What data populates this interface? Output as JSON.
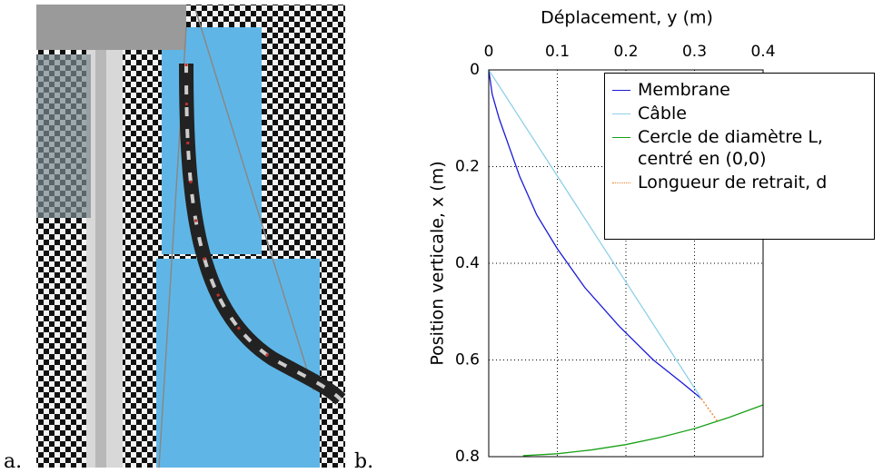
{
  "panel_labels": {
    "a": "a.",
    "b": "b."
  },
  "chart_data": {
    "type": "line",
    "xlabel": "Déplacement, y (m)",
    "ylabel": "Position verticale, x (m)",
    "xlim": [
      0,
      0.4
    ],
    "xticks": [
      0,
      0.1,
      0.2,
      0.3,
      0.4
    ],
    "ylim": [
      0,
      0.8
    ],
    "yticks": [
      0,
      0.2,
      0.4,
      0.6,
      0.8
    ],
    "y_inverted": true,
    "x_axis_position": "top",
    "grid": true,
    "legend": "upper right",
    "series": [
      {
        "name": "Membrane",
        "color": "#1a1ad8",
        "style": "solid",
        "x": [
          0,
          0.005,
          0.015,
          0.03,
          0.045,
          0.07,
          0.1,
          0.14,
          0.19,
          0.24,
          0.28,
          0.31
        ],
        "values": [
          0,
          0.05,
          0.1,
          0.16,
          0.22,
          0.3,
          0.37,
          0.45,
          0.53,
          0.6,
          0.645,
          0.68
        ]
      },
      {
        "name": "Câble",
        "color": "#8fd0e8",
        "style": "solid",
        "x": [
          0,
          0.31
        ],
        "values": [
          0,
          0.68
        ]
      },
      {
        "name": "Cercle de diamètre L, centré en (0,0)",
        "color": "#18a018",
        "style": "solid",
        "x": [
          0.05,
          0.1,
          0.15,
          0.2,
          0.25,
          0.3,
          0.35,
          0.4
        ],
        "values": [
          0.798,
          0.794,
          0.786,
          0.775,
          0.76,
          0.742,
          0.719,
          0.693
        ]
      },
      {
        "name": "Longueur de retrait, d",
        "color": "#f08020",
        "style": "dotted",
        "x": [
          0.31,
          0.333
        ],
        "values": [
          0.68,
          0.726
        ]
      }
    ]
  }
}
